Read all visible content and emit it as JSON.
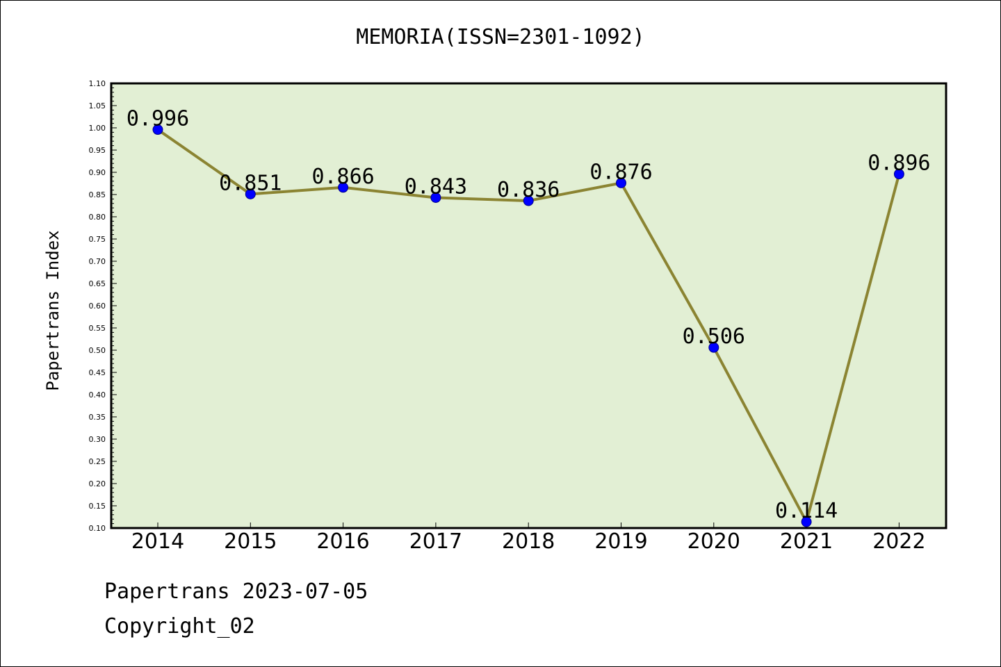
{
  "title": "MEMORIA(ISSN=2301-1092)",
  "footer": {
    "line1": "Papertrans 2023-07-05",
    "line2": "Copyright_02"
  },
  "colors": {
    "plot_bg": "#e2efd4",
    "line": "#8b8432",
    "marker": "#0000ff"
  },
  "chart_data": {
    "type": "line",
    "title": "MEMORIA(ISSN=2301-1092)",
    "xlabel": "",
    "ylabel": "Papertrans Index",
    "categories": [
      "2014",
      "2015",
      "2016",
      "2017",
      "2018",
      "2019",
      "2020",
      "2021",
      "2022"
    ],
    "series": [
      {
        "values": [
          0.996,
          0.851,
          0.866,
          0.843,
          0.836,
          0.876,
          0.506,
          0.114,
          0.896
        ],
        "labels": [
          "0.996",
          "0.851",
          "0.866",
          "0.843",
          "0.836",
          "0.876",
          "0.506",
          "0.114",
          "0.896"
        ]
      }
    ],
    "ylim": [
      0.1,
      1.1
    ],
    "yticks": [
      "0.10",
      "0.15",
      "0.20",
      "0.25",
      "0.30",
      "0.35",
      "0.40",
      "0.45",
      "0.50",
      "0.55",
      "0.60",
      "0.65",
      "0.70",
      "0.75",
      "0.80",
      "0.85",
      "0.90",
      "0.95",
      "1.00",
      "1.05",
      "1.10"
    ],
    "grid": false,
    "legend": "none"
  }
}
